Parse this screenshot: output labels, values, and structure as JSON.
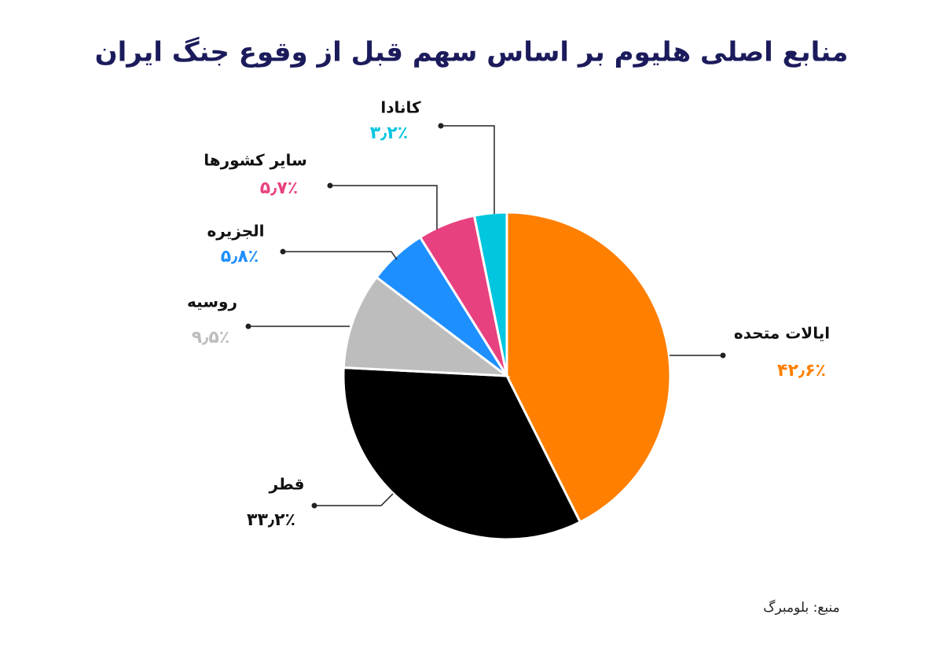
{
  "chart_data": {
    "type": "pie",
    "title": "منابع اصلی هلیوم بر اساس سهم قبل از وقوع جنگ ایران",
    "categories": [
      "ایالات متحده",
      "قطر",
      "روسیه",
      "الجزیره",
      "سایر کشورها",
      "کانادا"
    ],
    "values": [
      42.6,
      33.2,
      9.5,
      5.8,
      5.7,
      3.2
    ],
    "value_labels": [
      "۴۲٫۶٪",
      "۳۳٫۲٪",
      "۹٫۵٪",
      "۵٫۸٪",
      "۵٫۷٪",
      "۳٫۲٪"
    ],
    "colors": [
      "#ff7f00",
      "#000000",
      "#bdbdbd",
      "#1e8fff",
      "#e8417f",
      "#00c6e0"
    ],
    "source": "منبع: بلومبرگ"
  }
}
